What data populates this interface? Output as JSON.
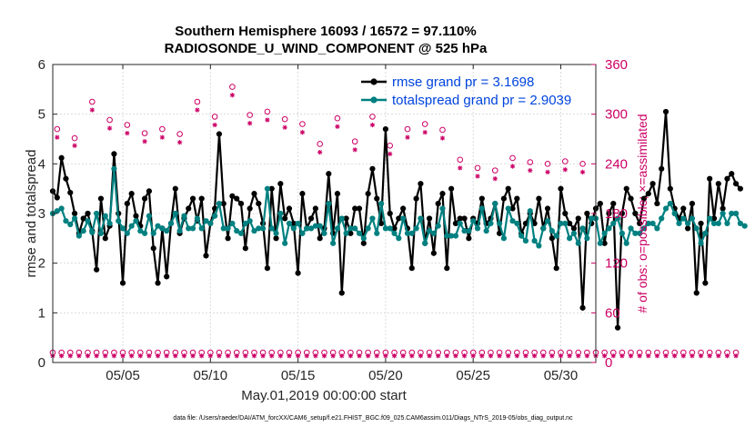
{
  "chart_data": {
    "type": "line",
    "title": "Southern Hemisphere 16093 / 16572 = 97.110%",
    "subtitle": "RADIOSONDE_U_WIND_COMPONENT @ 525 hPa",
    "xlabel": "May.01,2019 00:00:00 start",
    "ylabel": "rmse and totalspread",
    "ylabel_right": "# of obs: o=possible; ×=assimilated",
    "footnote": "data file: /Users/raeder/DAI/ATM_forcXX/CAM6_setup/f.e21.FHIST_BGC.f09_025.CAM6assim.011/Diags_NTrS_2019-05/obs_diag_output.nc",
    "xlim": [
      1.0,
      32.0
    ],
    "ylim": [
      0,
      6
    ],
    "ylim_right": [
      0,
      360
    ],
    "x_ticks": [
      5,
      10,
      15,
      20,
      25,
      30
    ],
    "x_tick_labels": [
      "05/05",
      "05/10",
      "05/15",
      "05/20",
      "05/25",
      "05/30"
    ],
    "y_ticks": [
      0,
      1,
      2,
      3,
      4,
      5,
      6
    ],
    "y_tick_labels": [
      "0",
      "1",
      "2",
      "3",
      "4",
      "5",
      "6"
    ],
    "y_right_ticks": [
      0,
      60,
      120,
      180,
      240,
      300,
      360
    ],
    "y_right_tick_labels": [
      "0",
      "60",
      "120",
      "180",
      "240",
      "300",
      "360"
    ],
    "grid": true,
    "legend_position": "top-right",
    "colors": {
      "rmse": "#000000",
      "totalspread": "#008080",
      "obs": "#cc0066",
      "legend_text": "#0044dd",
      "axis": "#262626"
    },
    "x_start": 1.0,
    "x_step": 0.25,
    "series": [
      {
        "name": "rmse grand pr = 3.1698",
        "color": "#000000",
        "values": [
          3.45,
          3.32,
          4.12,
          3.7,
          3.42,
          3.0,
          2.6,
          2.9,
          3.0,
          2.65,
          1.87,
          3.3,
          2.5,
          2.75,
          4.2,
          3.0,
          1.6,
          3.2,
          3.4,
          2.95,
          2.75,
          3.3,
          3.45,
          2.3,
          1.6,
          2.7,
          1.73,
          2.8,
          3.5,
          2.6,
          2.9,
          3.1,
          3.3,
          2.85,
          3.3,
          2.15,
          2.8,
          3.1,
          4.6,
          3.2,
          2.5,
          3.35,
          3.3,
          3.2,
          2.3,
          3.1,
          3.4,
          3.2,
          2.8,
          1.9,
          3.5,
          2.5,
          3.6,
          2.9,
          3.1,
          2.8,
          1.8,
          3.4,
          2.7,
          2.9,
          3.1,
          2.5,
          2.7,
          3.8,
          2.6,
          3.4,
          1.4,
          2.9,
          2.6,
          3.1,
          3.1,
          2.4,
          3.4,
          3.9,
          3.3,
          2.8,
          4.7,
          3.0,
          2.7,
          2.9,
          3.1,
          2.7,
          1.9,
          3.3,
          3.6,
          2.4,
          2.9,
          2.2,
          3.2,
          3.4,
          1.9,
          3.5,
          2.8,
          2.9,
          2.9,
          2.5,
          2.9,
          2.8,
          3.3,
          2.8,
          2.9,
          3.2,
          2.6,
          3.3,
          3.5,
          3.1,
          3.3,
          2.6,
          2.8,
          3.0,
          2.8,
          3.3,
          2.7,
          3.1,
          2.5,
          1.9,
          3.5,
          3.0,
          2.8,
          2.7,
          2.9,
          1.1,
          3.0,
          2.8,
          3.1,
          3.2,
          2.4,
          3.0,
          3.2,
          0.7,
          3.0,
          3.5,
          3.3,
          3.0,
          2.8,
          3.3,
          3.4,
          3.6,
          3.2,
          3.9,
          5.05,
          3.5,
          3.1,
          2.9,
          3.1,
          2.7,
          3.2,
          1.4,
          2.8,
          1.6,
          3.7,
          2.9,
          3.6,
          3.1,
          3.7,
          3.8,
          3.6,
          3.5
        ]
      },
      {
        "name": "totalspread grand pr = 2.9039",
        "color": "#008080",
        "values": [
          3.0,
          3.05,
          3.1,
          2.85,
          2.78,
          2.9,
          2.55,
          2.65,
          2.85,
          2.62,
          3.0,
          2.6,
          2.95,
          2.8,
          3.9,
          2.85,
          2.7,
          2.6,
          2.75,
          2.85,
          2.65,
          2.6,
          2.95,
          2.6,
          2.75,
          2.7,
          2.65,
          2.8,
          3.0,
          2.65,
          2.95,
          2.7,
          2.7,
          2.9,
          2.7,
          2.85,
          2.8,
          2.95,
          3.2,
          2.7,
          2.7,
          2.8,
          2.65,
          2.6,
          2.8,
          2.85,
          2.65,
          2.7,
          2.7,
          3.5,
          2.7,
          2.6,
          3.0,
          2.4,
          2.8,
          2.7,
          2.8,
          2.6,
          2.7,
          2.7,
          2.75,
          2.75,
          2.6,
          3.2,
          2.4,
          2.7,
          2.9,
          2.6,
          2.7,
          2.7,
          2.6,
          2.5,
          2.7,
          2.9,
          2.6,
          3.2,
          2.7,
          2.7,
          2.6,
          2.5,
          2.9,
          2.6,
          2.6,
          2.7,
          2.9,
          2.4,
          2.65,
          2.6,
          2.75,
          3.1,
          2.55,
          2.55,
          2.55,
          2.8,
          2.65,
          2.65,
          2.85,
          2.7,
          3.1,
          2.65,
          2.8,
          3.2,
          2.8,
          2.5,
          3.1,
          2.85,
          2.8,
          2.55,
          2.45,
          3.05,
          2.45,
          2.35,
          2.7,
          2.85,
          2.65,
          2.55,
          2.8,
          2.8,
          2.5,
          2.6,
          2.4,
          2.7,
          2.5,
          2.9,
          2.9,
          2.4,
          2.6,
          2.7,
          2.8,
          2.9,
          2.6,
          2.4,
          2.7,
          2.6,
          2.6,
          2.7,
          2.8,
          2.8,
          2.7,
          2.9,
          3.1,
          3.2,
          3.0,
          2.8,
          2.9,
          2.8,
          2.9,
          2.7,
          2.4,
          2.6,
          2.9,
          2.8,
          2.8,
          3.0,
          2.8,
          3.0,
          3.0,
          2.8,
          2.75
        ]
      }
    ],
    "obs_possible_daily": [
      282,
      271,
      315,
      293,
      287,
      277,
      282,
      276,
      315,
      297,
      333,
      299,
      303,
      294,
      288,
      264,
      295,
      267,
      297,
      262,
      282,
      288,
      281,
      245,
      235,
      232,
      247,
      242,
      240,
      243,
      240
    ],
    "obs_assimilated_daily": [
      272,
      262,
      305,
      283,
      277,
      267,
      272,
      266,
      305,
      287,
      323,
      289,
      293,
      284,
      278,
      254,
      285,
      257,
      287,
      252,
      272,
      278,
      271,
      235,
      225,
      222,
      237,
      232,
      230,
      233,
      230
    ],
    "obs_possible_bottom": 12,
    "obs_assimilated_bottom": 8
  }
}
